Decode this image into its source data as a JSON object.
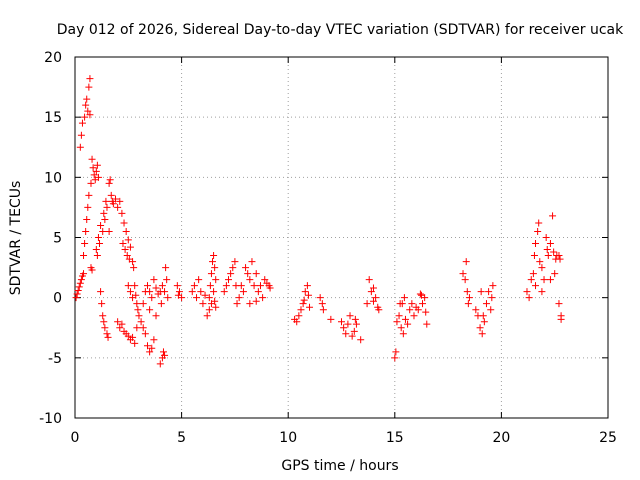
{
  "chart_data": {
    "type": "scatter",
    "title": "Day 012 of 2026, Sidereal Day-to-day VTEC variation (SDTVAR) for receiver ucak",
    "xlabel": "GPS time / hours",
    "ylabel": "SDTVAR / TECUs",
    "xlim": [
      0,
      25
    ],
    "ylim": [
      -10,
      20
    ],
    "xticks": [
      "0",
      "5",
      "10",
      "15",
      "20",
      "25"
    ],
    "yticks": [
      "-10",
      "-5",
      "0",
      "5",
      "10",
      "15",
      "20"
    ],
    "grid": true,
    "marker": "+",
    "color": "#ff0000",
    "series": [
      {
        "name": "SDTVAR",
        "points": [
          [
            0.05,
            0.0
          ],
          [
            0.1,
            0.3
          ],
          [
            0.15,
            0.6
          ],
          [
            0.2,
            0.9
          ],
          [
            0.25,
            1.2
          ],
          [
            0.25,
            12.5
          ],
          [
            0.3,
            13.5
          ],
          [
            0.3,
            1.5
          ],
          [
            0.35,
            14.5
          ],
          [
            0.35,
            1.8
          ],
          [
            0.4,
            2.0
          ],
          [
            0.4,
            3.5
          ],
          [
            0.45,
            4.5
          ],
          [
            0.45,
            15.0
          ],
          [
            0.5,
            16.0
          ],
          [
            0.5,
            5.5
          ],
          [
            0.55,
            6.5
          ],
          [
            0.55,
            16.5
          ],
          [
            0.6,
            15.5
          ],
          [
            0.6,
            7.5
          ],
          [
            0.65,
            17.5
          ],
          [
            0.65,
            8.5
          ],
          [
            0.7,
            18.2
          ],
          [
            0.7,
            15.2
          ],
          [
            0.75,
            9.5
          ],
          [
            0.75,
            2.5
          ],
          [
            0.8,
            11.5
          ],
          [
            0.8,
            2.3
          ],
          [
            0.85,
            10.8
          ],
          [
            0.9,
            10.2
          ],
          [
            0.95,
            9.8
          ],
          [
            1.0,
            10.5
          ],
          [
            1.0,
            4.0
          ],
          [
            1.05,
            11.0
          ],
          [
            1.05,
            3.5
          ],
          [
            1.1,
            5.0
          ],
          [
            1.1,
            10.0
          ],
          [
            1.15,
            4.5
          ],
          [
            1.2,
            6.0
          ],
          [
            1.2,
            0.5
          ],
          [
            1.25,
            -0.5
          ],
          [
            1.3,
            5.5
          ],
          [
            1.3,
            -1.5
          ],
          [
            1.35,
            7.0
          ],
          [
            1.35,
            -2.0
          ],
          [
            1.4,
            6.5
          ],
          [
            1.4,
            -2.5
          ],
          [
            1.45,
            8.0
          ],
          [
            1.5,
            7.5
          ],
          [
            1.5,
            -3.0
          ],
          [
            1.55,
            -3.3
          ],
          [
            1.6,
            9.5
          ],
          [
            1.6,
            5.5
          ],
          [
            1.65,
            9.8
          ],
          [
            1.7,
            8.5
          ],
          [
            1.75,
            8.0
          ],
          [
            1.8,
            7.8
          ],
          [
            1.9,
            8.2
          ],
          [
            2.0,
            7.5
          ],
          [
            2.1,
            8.0
          ],
          [
            2.2,
            7.0
          ],
          [
            2.25,
            4.5
          ],
          [
            2.3,
            6.2
          ],
          [
            2.35,
            4.0
          ],
          [
            2.4,
            5.5
          ],
          [
            2.45,
            3.5
          ],
          [
            2.5,
            4.8
          ],
          [
            2.55,
            3.2
          ],
          [
            2.6,
            4.2
          ],
          [
            2.7,
            3.0
          ],
          [
            2.75,
            2.5
          ],
          [
            2.8,
            1.0
          ],
          [
            2.85,
            0.2
          ],
          [
            2.9,
            -0.5
          ],
          [
            2.95,
            -1.0
          ],
          [
            2.0,
            -2.0
          ],
          [
            2.1,
            -2.5
          ],
          [
            2.2,
            -2.2
          ],
          [
            2.3,
            -2.8
          ],
          [
            2.4,
            -3.0
          ],
          [
            2.5,
            -3.2
          ],
          [
            2.6,
            -3.5
          ],
          [
            2.7,
            -3.3
          ],
          [
            2.8,
            -3.8
          ],
          [
            2.9,
            -2.5
          ],
          [
            2.5,
            1.0
          ],
          [
            2.6,
            0.5
          ],
          [
            2.7,
            0.0
          ],
          [
            3.0,
            -1.5
          ],
          [
            3.1,
            -2.0
          ],
          [
            3.2,
            -2.5
          ],
          [
            3.3,
            -3.0
          ],
          [
            3.4,
            -4.0
          ],
          [
            3.5,
            -4.5
          ],
          [
            3.6,
            -4.2
          ],
          [
            3.7,
            -3.5
          ],
          [
            3.3,
            0.5
          ],
          [
            3.4,
            1.0
          ],
          [
            3.5,
            0.5
          ],
          [
            3.6,
            0.0
          ],
          [
            3.7,
            1.5
          ],
          [
            3.8,
            0.8
          ],
          [
            3.9,
            0.3
          ],
          [
            3.2,
            -0.5
          ],
          [
            3.5,
            -1.0
          ],
          [
            3.8,
            -1.5
          ],
          [
            4.0,
            -5.5
          ],
          [
            4.1,
            -5.0
          ],
          [
            4.15,
            -4.5
          ],
          [
            4.2,
            -4.8
          ],
          [
            4.0,
            0.5
          ],
          [
            4.1,
            1.0
          ],
          [
            4.2,
            0.5
          ],
          [
            4.3,
            1.5
          ],
          [
            4.25,
            2.5
          ],
          [
            4.35,
            0.0
          ],
          [
            4.05,
            -0.5
          ],
          [
            4.8,
            1.0
          ],
          [
            4.9,
            0.5
          ],
          [
            5.0,
            0.0
          ],
          [
            4.85,
            0.2
          ],
          [
            5.5,
            0.5
          ],
          [
            5.6,
            1.0
          ],
          [
            5.7,
            0.0
          ],
          [
            5.8,
            1.5
          ],
          [
            5.9,
            0.5
          ],
          [
            6.0,
            -0.5
          ],
          [
            6.1,
            0.2
          ],
          [
            6.2,
            -1.5
          ],
          [
            6.3,
            -1.0
          ],
          [
            6.35,
            1.0
          ],
          [
            6.4,
            2.0
          ],
          [
            6.45,
            3.0
          ],
          [
            6.5,
            3.5
          ],
          [
            6.55,
            2.5
          ],
          [
            6.6,
            1.5
          ],
          [
            6.3,
            0.0
          ],
          [
            6.4,
            -0.5
          ],
          [
            6.5,
            0.5
          ],
          [
            6.6,
            -0.8
          ],
          [
            6.55,
            -0.3
          ],
          [
            7.0,
            0.5
          ],
          [
            7.1,
            1.0
          ],
          [
            7.2,
            1.5
          ],
          [
            7.3,
            2.0
          ],
          [
            7.4,
            2.5
          ],
          [
            7.5,
            3.0
          ],
          [
            7.55,
            1.0
          ],
          [
            7.6,
            -0.5
          ],
          [
            7.7,
            0.0
          ],
          [
            7.8,
            1.0
          ],
          [
            7.9,
            0.5
          ],
          [
            8.0,
            2.5
          ],
          [
            8.1,
            2.0
          ],
          [
            8.2,
            1.5
          ],
          [
            8.3,
            3.0
          ],
          [
            8.4,
            1.0
          ],
          [
            8.5,
            2.0
          ],
          [
            8.6,
            0.5
          ],
          [
            8.7,
            1.0
          ],
          [
            8.8,
            0.0
          ],
          [
            8.9,
            1.5
          ],
          [
            8.2,
            -0.5
          ],
          [
            8.5,
            -0.3
          ],
          [
            9.0,
            1.2
          ],
          [
            9.1,
            1.0
          ],
          [
            9.15,
            0.8
          ],
          [
            10.3,
            -1.8
          ],
          [
            10.4,
            -2.0
          ],
          [
            10.5,
            -1.5
          ],
          [
            10.6,
            -1.0
          ],
          [
            10.7,
            -0.5
          ],
          [
            10.8,
            0.5
          ],
          [
            10.9,
            1.0
          ],
          [
            10.95,
            0.2
          ],
          [
            11.0,
            -0.8
          ],
          [
            10.75,
            -0.2
          ],
          [
            11.5,
            0.0
          ],
          [
            11.6,
            -0.5
          ],
          [
            11.65,
            -1.0
          ],
          [
            12.0,
            -1.8
          ],
          [
            12.5,
            -2.0
          ],
          [
            12.6,
            -2.5
          ],
          [
            12.7,
            -3.0
          ],
          [
            12.8,
            -2.2
          ],
          [
            12.9,
            -1.5
          ],
          [
            13.0,
            -3.2
          ],
          [
            13.1,
            -2.8
          ],
          [
            13.15,
            -1.8
          ],
          [
            13.2,
            -2.2
          ],
          [
            13.4,
            -3.5
          ],
          [
            13.7,
            -0.5
          ],
          [
            13.8,
            1.5
          ],
          [
            13.9,
            0.5
          ],
          [
            14.0,
            -0.3
          ],
          [
            14.1,
            0.0
          ],
          [
            14.2,
            -0.8
          ],
          [
            14.25,
            -1.0
          ],
          [
            14.0,
            0.8
          ],
          [
            15.0,
            -5.0
          ],
          [
            15.05,
            -4.5
          ],
          [
            15.1,
            -2.0
          ],
          [
            15.2,
            -1.5
          ],
          [
            15.3,
            -2.5
          ],
          [
            15.35,
            -0.5
          ],
          [
            15.4,
            -3.0
          ],
          [
            15.5,
            -1.8
          ],
          [
            15.6,
            -2.2
          ],
          [
            15.7,
            -1.0
          ],
          [
            15.8,
            -0.5
          ],
          [
            15.9,
            -1.5
          ],
          [
            15.25,
            -0.5
          ],
          [
            15.45,
            0.0
          ],
          [
            16.0,
            -0.8
          ],
          [
            16.1,
            -1.0
          ],
          [
            16.2,
            0.3
          ],
          [
            16.3,
            -0.5
          ],
          [
            16.4,
            0.0
          ],
          [
            16.45,
            -1.2
          ],
          [
            16.5,
            -2.2
          ],
          [
            16.25,
            0.2
          ],
          [
            18.2,
            2.0
          ],
          [
            18.3,
            1.5
          ],
          [
            18.35,
            3.0
          ],
          [
            18.4,
            0.5
          ],
          [
            18.45,
            -0.5
          ],
          [
            18.5,
            0.0
          ],
          [
            18.8,
            -1.0
          ],
          [
            18.9,
            -1.5
          ],
          [
            19.0,
            -2.5
          ],
          [
            19.1,
            -3.0
          ],
          [
            19.2,
            -2.0
          ],
          [
            19.3,
            -0.5
          ],
          [
            19.4,
            0.5
          ],
          [
            19.5,
            -1.0
          ],
          [
            19.55,
            0.0
          ],
          [
            19.6,
            1.0
          ],
          [
            19.05,
            0.5
          ],
          [
            19.15,
            -1.5
          ],
          [
            21.2,
            0.5
          ],
          [
            21.3,
            0.0
          ],
          [
            21.4,
            1.5
          ],
          [
            21.5,
            2.0
          ],
          [
            21.55,
            3.5
          ],
          [
            21.6,
            4.5
          ],
          [
            21.7,
            5.5
          ],
          [
            21.75,
            6.2
          ],
          [
            21.8,
            3.0
          ],
          [
            21.9,
            2.5
          ],
          [
            22.0,
            1.5
          ],
          [
            22.1,
            5.0
          ],
          [
            22.15,
            4.0
          ],
          [
            22.2,
            3.5
          ],
          [
            22.3,
            4.5
          ],
          [
            22.4,
            6.8
          ],
          [
            22.45,
            3.8
          ],
          [
            22.5,
            2.0
          ],
          [
            22.55,
            3.2
          ],
          [
            22.6,
            3.5
          ],
          [
            22.7,
            3.5
          ],
          [
            22.75,
            3.2
          ],
          [
            22.7,
            -0.5
          ],
          [
            22.8,
            -1.5
          ],
          [
            22.8,
            -1.8
          ],
          [
            21.6,
            1.0
          ],
          [
            21.9,
            0.5
          ],
          [
            22.3,
            1.5
          ]
        ]
      }
    ]
  }
}
